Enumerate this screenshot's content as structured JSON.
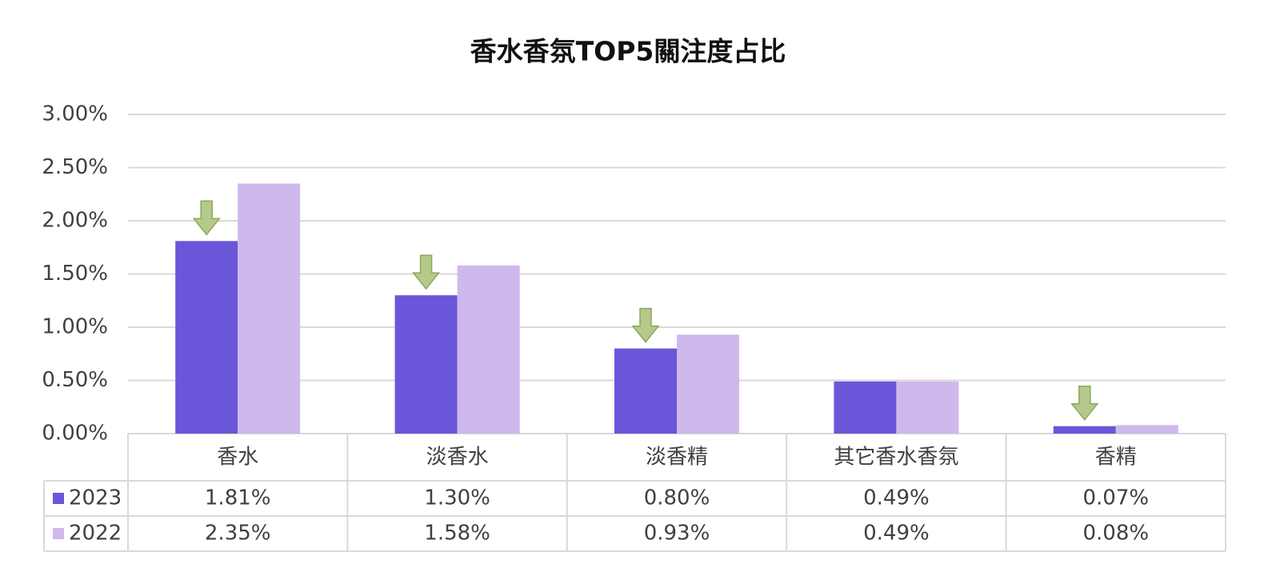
{
  "chart_data": {
    "type": "bar",
    "title": "香水香氛TOP5關注度占比",
    "categories": [
      "香水",
      "淡香水",
      "淡香精",
      "其它香水香氛",
      "香精"
    ],
    "series": [
      {
        "name": "2023",
        "color": "#6a56d8",
        "values": [
          1.81,
          1.3,
          0.8,
          0.49,
          0.07
        ],
        "value_labels": [
          "1.81%",
          "1.30%",
          "0.80%",
          "0.49%",
          "0.07%"
        ]
      },
      {
        "name": "2022",
        "color": "#cfb8ec",
        "values": [
          2.35,
          1.58,
          0.93,
          0.49,
          0.08
        ],
        "value_labels": [
          "2.35%",
          "1.58%",
          "0.93%",
          "0.49%",
          "0.08%"
        ]
      }
    ],
    "ylim": [
      0,
      3
    ],
    "yticks": [
      {
        "value": 0,
        "label": "0.00%"
      },
      {
        "value": 0.5,
        "label": "0.50%"
      },
      {
        "value": 1,
        "label": "1.00%"
      },
      {
        "value": 1.5,
        "label": "1.50%"
      },
      {
        "value": 2,
        "label": "2.00%"
      },
      {
        "value": 2.5,
        "label": "2.50%"
      },
      {
        "value": 3,
        "label": "3.00%"
      }
    ],
    "grid": true
  }
}
